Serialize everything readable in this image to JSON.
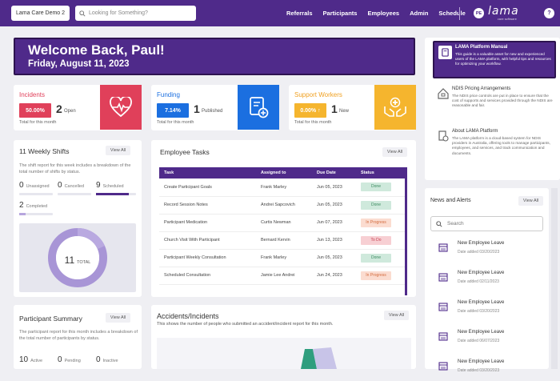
{
  "topbar": {
    "org_button": "Lama Care Demo 2",
    "search_placeholder": "Looking for Something?",
    "nav": [
      "Referrals",
      "Participants",
      "Employees",
      "Admin",
      "Schedule"
    ],
    "avatar_initials": "PE",
    "logo_text": "lama",
    "logo_tagline": "care software",
    "help": "?"
  },
  "welcome": {
    "title": "Welcome Back, Paul!",
    "date": "Friday, August 11, 2023"
  },
  "stats": {
    "incidents": {
      "title": "Incidents",
      "percent": "50.00%",
      "count": "2",
      "count_label": "Open",
      "sub": "Total for this month",
      "color": "#e0405a",
      "icon": "heart-pulse-icon"
    },
    "funding": {
      "title": "Funding",
      "percent": "7.14%",
      "count": "1",
      "count_label": "Published",
      "sub": "Total for this month",
      "color": "#1b6fe0",
      "icon": "document-plus-icon"
    },
    "support": {
      "title": "Support Workers",
      "percent": "0.00%",
      "trend": "↑",
      "count": "1",
      "count_label": "New",
      "sub": "Total for this month",
      "color": "#f5b52e",
      "icon": "hands-care-icon"
    }
  },
  "shifts": {
    "title": "11 Weekly Shifts",
    "view_all": "View All",
    "desc": "The shift report for this week includes a breakdown of the total number of shifts by status.",
    "metrics": [
      {
        "value": "0",
        "label": "Unassigned",
        "fill": 0
      },
      {
        "value": "0",
        "label": "Cancelled",
        "fill": 0
      },
      {
        "value": "9",
        "label": "Scheduled",
        "fill": 0.82
      }
    ],
    "completed": {
      "value": "2",
      "label": "Completed",
      "fill": 0.18
    },
    "donut_value": "11",
    "donut_label": "TOTAL"
  },
  "participants": {
    "title": "Participant Summary",
    "view_all": "View All",
    "desc": "The participant report for this month includes a breakdown of the total number of participants by status.",
    "metrics": [
      {
        "value": "10",
        "label": "Active"
      },
      {
        "value": "0",
        "label": "Pending"
      },
      {
        "value": "0",
        "label": "Inactive"
      }
    ]
  },
  "tasks": {
    "title": "Employee Tasks",
    "view_all": "View All",
    "headers": [
      "Task",
      "Assigned to",
      "Due Date",
      "Status"
    ],
    "rows": [
      {
        "task": "Create Participant Goals",
        "assigned": "Frank Marley",
        "due": "Jun 05, 2023",
        "status": "Done",
        "cls": "done"
      },
      {
        "task": "Record Session Notes",
        "assigned": "Andrei Sapcovich",
        "due": "Jun 05, 2023",
        "status": "Done",
        "cls": "done"
      },
      {
        "task": "Participant Medication",
        "assigned": "Curtis Newman",
        "due": "Jun 07, 2023",
        "status": "In Progress",
        "cls": "prog"
      },
      {
        "task": "Church Visit With Participant",
        "assigned": "Bernard Kervin",
        "due": "Jun 13, 2023",
        "status": "To Do",
        "cls": "todo"
      },
      {
        "task": "Participant Weekly Consultation",
        "assigned": "Frank Marley",
        "due": "Jun 05, 2023",
        "status": "Done",
        "cls": "done"
      },
      {
        "task": "Scheduled Consultation",
        "assigned": "Jamie Lee Andrei",
        "due": "Jun 24, 2023",
        "status": "In Progress",
        "cls": "prog"
      }
    ]
  },
  "accidents": {
    "title": "Accidents/Incidents",
    "view_all": "View All",
    "desc": "This shows the number of people who submitted an accident/incident report for this month."
  },
  "manual": {
    "title": "LAMA Platform Manual",
    "text": "This guide is a valuable asset for new and experienced users of the LAMA platform, with helpful tips and resources for optimizing your workflow."
  },
  "resources": [
    {
      "title": "NDIS Pricing Arrangements",
      "text": "The NDIS price controls are put in place to ensure that the cost of supports and services provided through the NDIS are reasonable and fair.",
      "icon": "house-icon"
    },
    {
      "title": "About LAMA Platform",
      "text": "The LAMA platform is a cloud-based system for NDIS providers in Australia, offering tools to manage participants, employees, and services, and track communication and documents.",
      "icon": "settings-document-icon"
    }
  ],
  "news": {
    "title": "News and Alerts",
    "view_all": "View All",
    "search_placeholder": "Search",
    "items": [
      {
        "title": "New Employee Leave",
        "date": "Date added 03/20/2023"
      },
      {
        "title": "New Employee Leave",
        "date": "Date added 02/11/2023"
      },
      {
        "title": "New Employee Leave",
        "date": "Date added 03/20/2023"
      },
      {
        "title": "New Employee Leave",
        "date": "Date added 06/07/2023"
      },
      {
        "title": "New Employee Leave",
        "date": "Date added 03/20/2023"
      }
    ]
  }
}
